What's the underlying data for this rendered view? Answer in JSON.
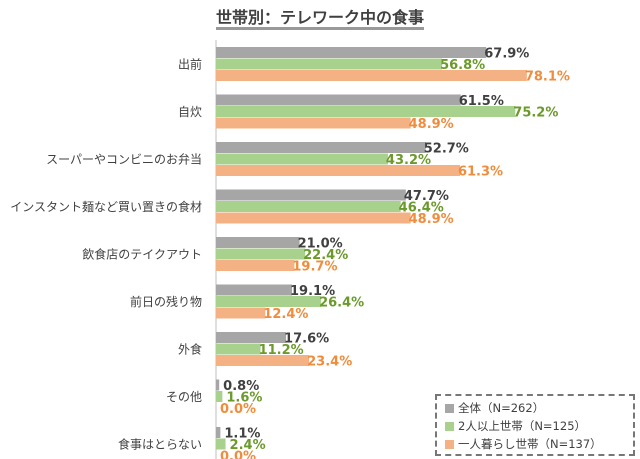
{
  "chart_data": {
    "type": "bar",
    "orientation": "horizontal",
    "title": "世帯別：テレワーク中の食事",
    "categories": [
      "出前",
      "自炊",
      "スーパーやコンビニのお弁当",
      "インスタント麺など買い置きの食材",
      "飲食店のテイクアウト",
      "前日の残り物",
      "外食",
      "その他",
      "食事はとらない"
    ],
    "series": [
      {
        "name": "全体（N=262）",
        "color": "#a6a6a6",
        "label_color": "#404040",
        "values": [
          67.9,
          61.5,
          52.7,
          47.7,
          21.0,
          19.1,
          17.6,
          0.8,
          1.1
        ]
      },
      {
        "name": "2人以上世帯（N=125）",
        "color": "#a9d18e",
        "label_color": "#6a9a2a",
        "values": [
          56.8,
          75.2,
          43.2,
          46.4,
          22.4,
          26.4,
          11.2,
          1.6,
          2.4
        ]
      },
      {
        "name": "一人暮らし世帯（N=137）",
        "color": "#f4b183",
        "label_color": "#f08c3c",
        "values": [
          78.1,
          48.9,
          61.3,
          48.9,
          19.7,
          12.4,
          23.4,
          0.0,
          0.0
        ]
      }
    ],
    "value_suffix": "%",
    "legend_position": "bottom-right",
    "grid": false
  }
}
